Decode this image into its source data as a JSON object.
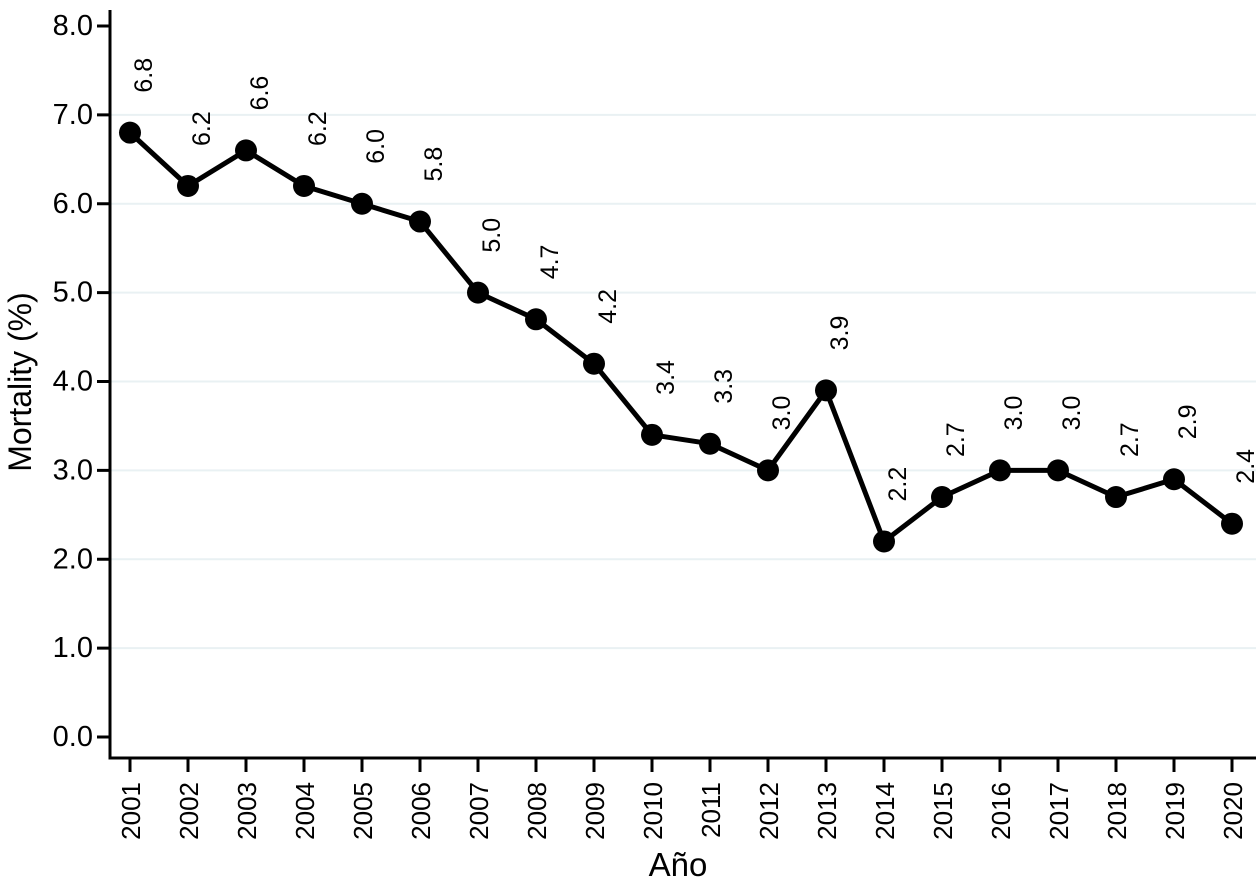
{
  "figure": {
    "background": "#ffffff"
  },
  "chart_data": {
    "type": "line",
    "title": "",
    "xlabel": "Año",
    "ylabel": "Mortality (%)",
    "categories": [
      "2001",
      "2002",
      "2003",
      "2004",
      "2005",
      "2006",
      "2007",
      "2008",
      "2009",
      "2010",
      "2011",
      "2012",
      "2013",
      "2014",
      "2015",
      "2016",
      "2017",
      "2018",
      "2019",
      "2020"
    ],
    "series": [
      {
        "name": "Mortality (%)",
        "values": [
          6.8,
          6.2,
          6.6,
          6.2,
          6.0,
          5.8,
          5.0,
          4.7,
          4.2,
          3.4,
          3.3,
          3.0,
          3.9,
          2.2,
          2.7,
          3.0,
          3.0,
          2.7,
          2.9,
          2.4
        ]
      }
    ],
    "point_labels": [
      "6.8",
      "6.2",
      "6.6",
      "6.2",
      "6.0",
      "5.8",
      "5.0",
      "4.7",
      "4.2",
      "3.4",
      "3.3",
      "3.0",
      "3.9",
      "2.2",
      "2.7",
      "3.0",
      "3.0",
      "2.7",
      "2.9",
      "2.4"
    ],
    "ylim": [
      0.0,
      8.0
    ],
    "ytick_labels": [
      "0.0",
      "1.0",
      "2.0",
      "3.0",
      "4.0",
      "5.0",
      "6.0",
      "7.0",
      "8.0"
    ],
    "gridline_values": [
      1,
      2,
      3,
      4,
      5,
      6,
      7
    ],
    "grid": true,
    "legend": "none",
    "marker": "filled-circle",
    "text_rotation": "vertical-bottom-to-top",
    "colors": {
      "line": "#000000",
      "marker": "#000000",
      "label_text": "#000000",
      "axis": "#000000",
      "gridline": "#e9f1f3",
      "background": "#ffffff"
    }
  }
}
